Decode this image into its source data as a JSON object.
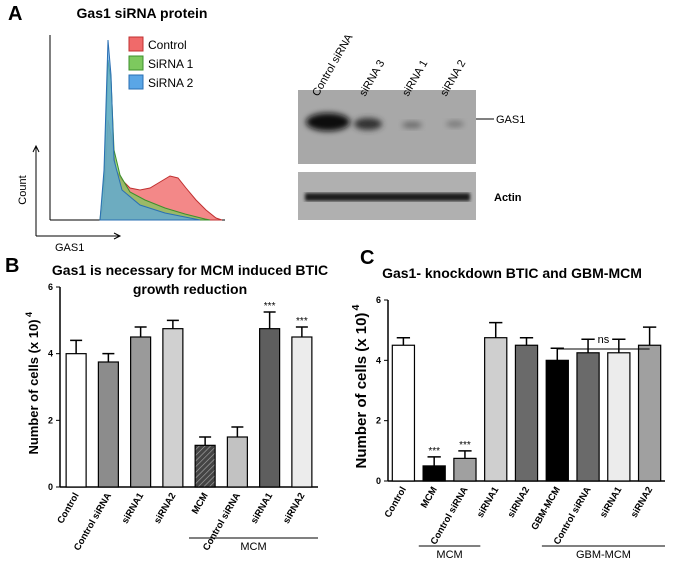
{
  "panel_a": {
    "letter": "A",
    "title": "Gas1 siRNA protein",
    "legend": [
      "Control",
      "SiRNA 1",
      "SiRNA 2"
    ],
    "y_label": "Count",
    "x_label": "GAS1",
    "lanes": [
      "Control siRNA",
      "siRNA 3",
      "siRNA 1",
      "siRNA 2"
    ],
    "band_labels": [
      "GAS1",
      "Actin"
    ]
  },
  "panel_letters": [
    "B",
    "C"
  ],
  "chart_data": [
    {
      "type": "bar",
      "title": [
        "Gas1 is necessary for MCM induced BTIC",
        "growth reduction"
      ],
      "ylabel": "Number of cells (x 10)",
      "ylabel_superscript": "4",
      "categories": [
        "Control",
        "Control siRNA",
        "siRNA1",
        "siRNA2",
        "MCM",
        "Control siRNA",
        "siRNA1",
        "siRNA2"
      ],
      "values": [
        4.0,
        3.75,
        4.5,
        4.75,
        1.25,
        1.5,
        4.75,
        4.5
      ],
      "errors": [
        0.4,
        0.25,
        0.3,
        0.25,
        0.25,
        0.3,
        0.5,
        0.3
      ],
      "colors": [
        "#ffffff",
        "#8c8c8c",
        "#9a9a9a",
        "#d0d0d0",
        "#3a3a3a",
        "#c2c2c2",
        "#5e5e5e",
        "#ececec"
      ],
      "annotations": [
        null,
        null,
        null,
        null,
        null,
        null,
        "***",
        "***"
      ],
      "groups": [
        "MCM"
      ],
      "ylim": [
        0,
        6
      ],
      "yticks": [
        0,
        2,
        4,
        6
      ]
    },
    {
      "type": "bar",
      "title": [
        "Gas1- knockdown BTIC and GBM-MCM"
      ],
      "ylabel": "Number of cells (x 10)",
      "ylabel_superscript": "4",
      "categories": [
        "Control",
        "MCM",
        "Control siRNA",
        "siRNA1",
        "siRNA2",
        "GBM-MCM",
        "Control siRNA",
        "siRNA1",
        "siRNA2"
      ],
      "values": [
        4.5,
        0.5,
        0.75,
        4.75,
        4.5,
        4.0,
        4.25,
        4.25,
        4.5
      ],
      "errors": [
        0.25,
        0.3,
        0.25,
        0.5,
        0.25,
        0.4,
        0.45,
        0.45,
        0.6
      ],
      "colors": [
        "#ffffff",
        "#000000",
        "#a0a0a0",
        "#cfcfcf",
        "#6a6a6a",
        "#000000",
        "#6a6a6a",
        "#ececec",
        "#a0a0a0"
      ],
      "annotations": [
        null,
        "***",
        "***",
        null,
        null,
        null,
        null,
        null,
        null
      ],
      "groups": [
        "MCM",
        "GBM-MCM"
      ],
      "bracket_label": "ns",
      "ylim": [
        0,
        6
      ],
      "yticks": [
        0,
        2,
        4,
        6
      ]
    }
  ]
}
